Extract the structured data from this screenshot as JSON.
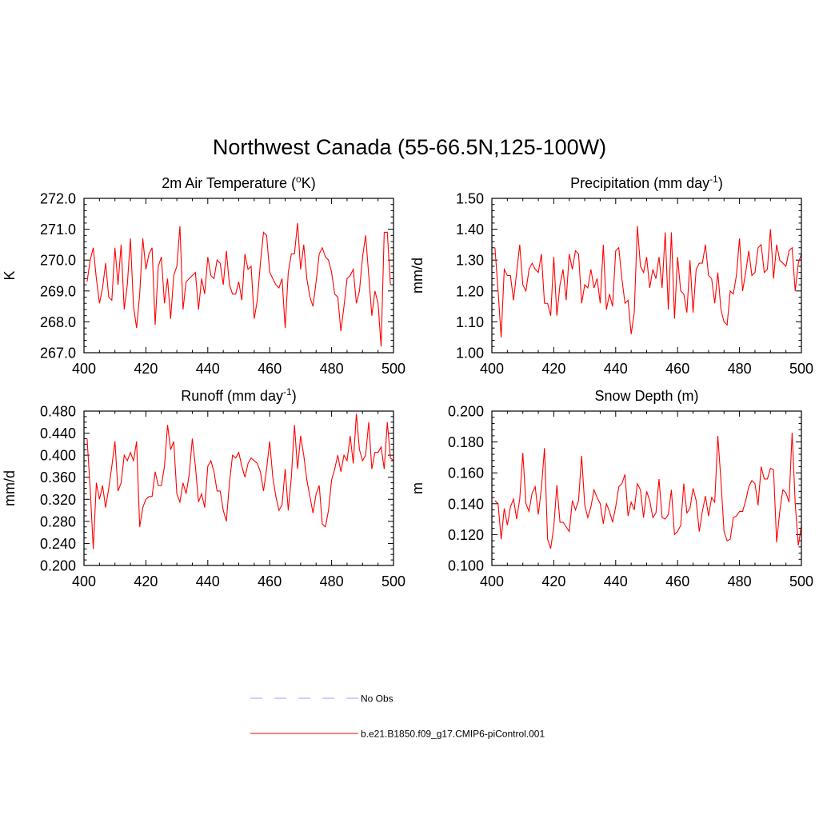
{
  "figure": {
    "title": "Northwest Canada (55-66.5N,125-100W)"
  },
  "chart_data": [
    {
      "id": "temperature",
      "type": "line",
      "title": "2m Air Temperature (°K)",
      "title_parts": {
        "pre": "2m Air Temperature (",
        "sup": "o",
        "post": "K)"
      },
      "xlabel": "",
      "ylabel": "K",
      "xlim": [
        400,
        500
      ],
      "ylim": [
        267.0,
        272.0
      ],
      "xticks": [
        400,
        420,
        440,
        460,
        480,
        500
      ],
      "xtick_labels": [
        "400",
        "420",
        "440",
        "460",
        "480",
        "500"
      ],
      "yticks": [
        267.0,
        268.0,
        269.0,
        270.0,
        271.0,
        272.0
      ],
      "ytick_labels": [
        "267.0",
        "268.0",
        "269.0",
        "270.0",
        "271.0",
        "272.0"
      ],
      "x_start": 401,
      "series": [
        {
          "name": "b.e21.B1850.f09_g17.CMIP6-piControl.001",
          "color": "#ff0000",
          "values": [
            269.3,
            270.0,
            270.4,
            269.4,
            268.6,
            269.1,
            269.9,
            268.8,
            268.7,
            270.4,
            269.2,
            270.5,
            268.4,
            269.2,
            270.7,
            268.5,
            267.8,
            268.9,
            270.7,
            269.7,
            270.2,
            270.4,
            267.9,
            269.8,
            270.1,
            268.6,
            269.4,
            268.1,
            269.5,
            269.8,
            271.1,
            268.4,
            269.3,
            269.4,
            269.5,
            269.6,
            268.4,
            269.4,
            268.9,
            270.1,
            269.5,
            269.4,
            270.0,
            269.9,
            269.2,
            270.3,
            269.2,
            268.9,
            268.9,
            269.3,
            268.7,
            270.2,
            269.7,
            269.8,
            268.1,
            268.7,
            269.9,
            270.9,
            270.8,
            269.6,
            269.4,
            269.2,
            269.1,
            269.4,
            267.8,
            269.6,
            270.2,
            270.2,
            271.2,
            269.7,
            270.5,
            269.4,
            268.8,
            268.5,
            269.3,
            270.2,
            270.4,
            270.1,
            270.0,
            269.6,
            268.9,
            268.8,
            267.7,
            268.5,
            269.4,
            269.5,
            269.7,
            268.6,
            269.0,
            270.1,
            270.8,
            269.5,
            268.2,
            269.0,
            268.6,
            267.2,
            270.9,
            270.9,
            269.2
          ]
        }
      ]
    },
    {
      "id": "precipitation",
      "type": "line",
      "title": "Precipitation (mm day-1)",
      "title_parts": {
        "pre": "Precipitation (mm day",
        "sup": "-1",
        "post": ")"
      },
      "xlabel": "",
      "ylabel": "mm/d",
      "xlim": [
        400,
        500
      ],
      "ylim": [
        1.0,
        1.5
      ],
      "xticks": [
        400,
        420,
        440,
        460,
        480,
        500
      ],
      "xtick_labels": [
        "400",
        "420",
        "440",
        "460",
        "480",
        "500"
      ],
      "yticks": [
        1.0,
        1.1,
        1.2,
        1.3,
        1.4,
        1.5
      ],
      "ytick_labels": [
        "1.00",
        "1.10",
        "1.20",
        "1.30",
        "1.40",
        "1.50"
      ],
      "x_start": 401,
      "series": [
        {
          "name": "b.e21.B1850.f09_g17.CMIP6-piControl.001",
          "color": "#ff0000",
          "values": [
            1.34,
            1.2,
            1.05,
            1.27,
            1.25,
            1.25,
            1.17,
            1.26,
            1.35,
            1.22,
            1.2,
            1.27,
            1.29,
            1.27,
            1.26,
            1.32,
            1.16,
            1.16,
            1.12,
            1.31,
            1.12,
            1.22,
            1.27,
            1.17,
            1.32,
            1.27,
            1.33,
            1.32,
            1.16,
            1.22,
            1.21,
            1.27,
            1.21,
            1.24,
            1.16,
            1.35,
            1.14,
            1.19,
            1.15,
            1.33,
            1.34,
            1.24,
            1.16,
            1.17,
            1.06,
            1.13,
            1.41,
            1.28,
            1.26,
            1.31,
            1.21,
            1.27,
            1.24,
            1.31,
            1.21,
            1.39,
            1.14,
            1.39,
            1.11,
            1.31,
            1.2,
            1.19,
            1.13,
            1.3,
            1.13,
            1.27,
            1.29,
            1.29,
            1.35,
            1.25,
            1.24,
            1.16,
            1.26,
            1.14,
            1.1,
            1.09,
            1.2,
            1.19,
            1.25,
            1.37,
            1.2,
            1.26,
            1.33,
            1.25,
            1.26,
            1.34,
            1.35,
            1.26,
            1.27,
            1.4,
            1.24,
            1.35,
            1.3,
            1.29,
            1.28,
            1.33,
            1.34,
            1.2,
            1.29,
            1.32
          ]
        }
      ]
    },
    {
      "id": "runoff",
      "type": "line",
      "title": "Runoff (mm day-1)",
      "title_parts": {
        "pre": "Runoff (mm day",
        "sup": "-1",
        "post": ")"
      },
      "xlabel": "",
      "ylabel": "mm/d",
      "xlim": [
        400,
        500
      ],
      "ylim": [
        0.2,
        0.48
      ],
      "xticks": [
        400,
        420,
        440,
        460,
        480,
        500
      ],
      "xtick_labels": [
        "400",
        "420",
        "440",
        "460",
        "480",
        "500"
      ],
      "yticks": [
        0.2,
        0.24,
        0.28,
        0.32,
        0.36,
        0.4,
        0.44,
        0.48
      ],
      "ytick_labels": [
        "0.200",
        "0.240",
        "0.280",
        "0.320",
        "0.360",
        "0.400",
        "0.440",
        "0.480"
      ],
      "x_start": 401,
      "series": [
        {
          "name": "b.e21.B1850.f09_g17.CMIP6-piControl.001",
          "color": "#ff0000",
          "values": [
            0.43,
            0.34,
            0.23,
            0.35,
            0.32,
            0.345,
            0.305,
            0.34,
            0.38,
            0.425,
            0.335,
            0.35,
            0.4,
            0.39,
            0.405,
            0.39,
            0.425,
            0.27,
            0.305,
            0.32,
            0.325,
            0.325,
            0.37,
            0.345,
            0.345,
            0.38,
            0.455,
            0.41,
            0.425,
            0.33,
            0.315,
            0.35,
            0.33,
            0.365,
            0.43,
            0.38,
            0.315,
            0.33,
            0.305,
            0.38,
            0.39,
            0.37,
            0.335,
            0.335,
            0.3,
            0.28,
            0.35,
            0.4,
            0.395,
            0.405,
            0.38,
            0.36,
            0.385,
            0.395,
            0.39,
            0.385,
            0.37,
            0.335,
            0.375,
            0.425,
            0.36,
            0.325,
            0.3,
            0.31,
            0.375,
            0.3,
            0.36,
            0.455,
            0.375,
            0.435,
            0.4,
            0.355,
            0.325,
            0.295,
            0.33,
            0.345,
            0.275,
            0.27,
            0.3,
            0.355,
            0.375,
            0.4,
            0.37,
            0.4,
            0.39,
            0.435,
            0.385,
            0.475,
            0.41,
            0.39,
            0.4,
            0.46,
            0.375,
            0.405,
            0.405,
            0.415,
            0.375,
            0.46,
            0.395,
            0.39
          ]
        }
      ]
    },
    {
      "id": "snow_depth",
      "type": "line",
      "title": "Snow Depth (m)",
      "title_parts": {
        "pre": "Snow Depth (m)",
        "sup": "",
        "post": ""
      },
      "xlabel": "",
      "ylabel": "m",
      "xlim": [
        400,
        500
      ],
      "ylim": [
        0.1,
        0.2
      ],
      "xticks": [
        400,
        420,
        440,
        460,
        480,
        500
      ],
      "xtick_labels": [
        "400",
        "420",
        "440",
        "460",
        "480",
        "500"
      ],
      "yticks": [
        0.1,
        0.12,
        0.14,
        0.16,
        0.18,
        0.2
      ],
      "ytick_labels": [
        "0.100",
        "0.120",
        "0.140",
        "0.160",
        "0.180",
        "0.200"
      ],
      "x_start": 401,
      "series": [
        {
          "name": "b.e21.B1850.f09_g17.CMIP6-piControl.001",
          "color": "#ff0000",
          "values": [
            0.142,
            0.14,
            0.117,
            0.137,
            0.126,
            0.138,
            0.143,
            0.13,
            0.143,
            0.173,
            0.14,
            0.135,
            0.147,
            0.151,
            0.133,
            0.15,
            0.176,
            0.117,
            0.111,
            0.125,
            0.152,
            0.128,
            0.128,
            0.125,
            0.122,
            0.142,
            0.136,
            0.142,
            0.171,
            0.139,
            0.131,
            0.138,
            0.149,
            0.144,
            0.14,
            0.127,
            0.14,
            0.135,
            0.128,
            0.138,
            0.151,
            0.153,
            0.159,
            0.132,
            0.141,
            0.136,
            0.153,
            0.149,
            0.131,
            0.148,
            0.142,
            0.131,
            0.134,
            0.156,
            0.131,
            0.13,
            0.133,
            0.149,
            0.12,
            0.122,
            0.126,
            0.153,
            0.134,
            0.137,
            0.15,
            0.142,
            0.122,
            0.135,
            0.145,
            0.132,
            0.144,
            0.141,
            0.184,
            0.155,
            0.122,
            0.116,
            0.117,
            0.131,
            0.132,
            0.135,
            0.135,
            0.142,
            0.151,
            0.155,
            0.153,
            0.139,
            0.164,
            0.156,
            0.156,
            0.163,
            0.162,
            0.115,
            0.135,
            0.149,
            0.147,
            0.141,
            0.186,
            0.14,
            0.113,
            0.126
          ]
        }
      ]
    }
  ],
  "legend": {
    "entries": [
      {
        "label": "No Obs",
        "color": "#9b9bff",
        "style": "dashed"
      },
      {
        "label": "b.e21.B1850.f09_g17.CMIP6-piControl.001",
        "color": "#ff0000",
        "style": "solid"
      }
    ]
  }
}
